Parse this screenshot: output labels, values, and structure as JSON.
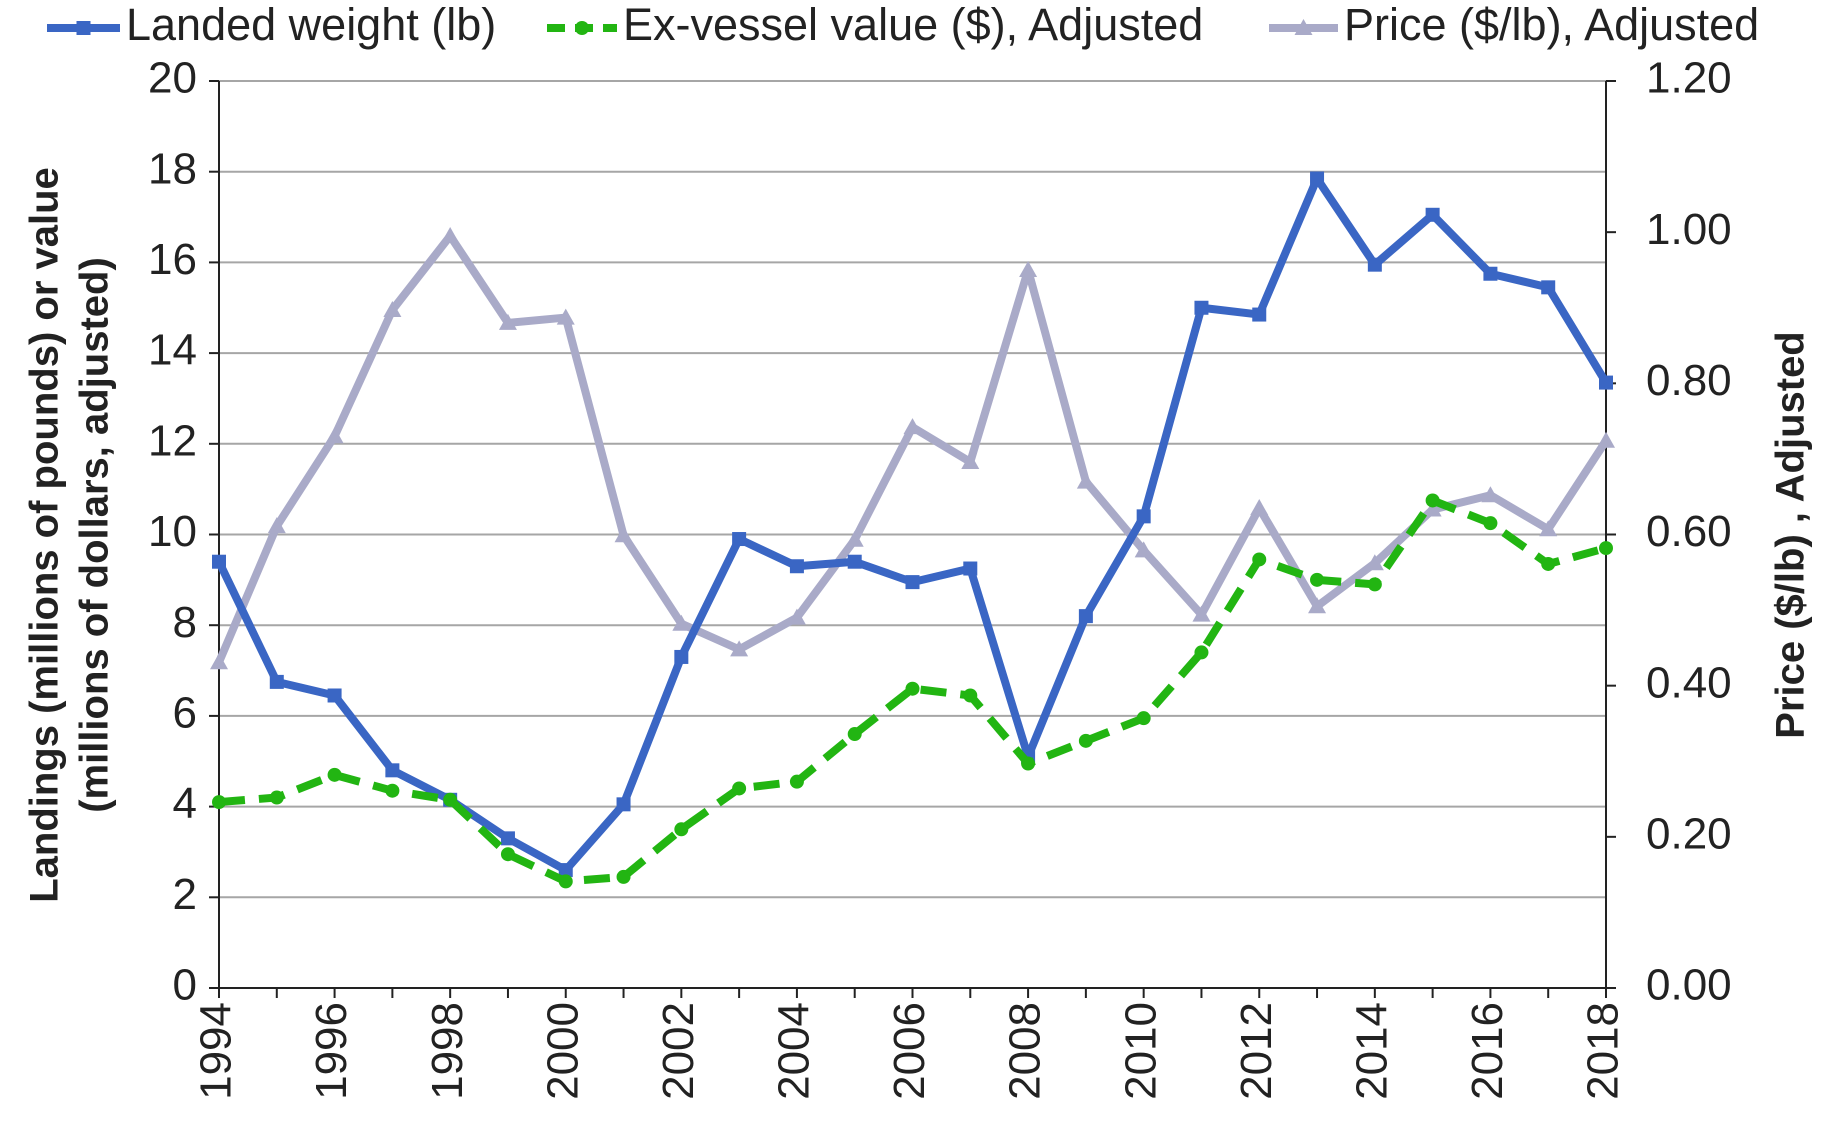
{
  "chart_data": {
    "type": "line",
    "ylabel": [
      "Landings (millions of pounds) or value",
      "(millions of dollars, adjusted)"
    ],
    "y2label": "Price ($/lb) , Adjusted",
    "x": [
      1994,
      1995,
      1996,
      1997,
      1998,
      1999,
      2000,
      2001,
      2002,
      2003,
      2004,
      2005,
      2006,
      2007,
      2008,
      2009,
      2010,
      2011,
      2012,
      2013,
      2014,
      2015,
      2016,
      2017,
      2018
    ],
    "xlim": [
      1994,
      2018
    ],
    "xticks": [
      1994,
      1996,
      1998,
      2000,
      2002,
      2004,
      2006,
      2008,
      2010,
      2012,
      2014,
      2016,
      2018
    ],
    "ylim": [
      0,
      20
    ],
    "yticks": [
      0,
      2,
      4,
      6,
      8,
      10,
      12,
      14,
      16,
      18,
      20
    ],
    "y2lim": [
      0,
      1.2
    ],
    "y2ticks": [
      {
        "value": 0,
        "label": "0.00"
      },
      {
        "value": 0.2,
        "label": "0.20"
      },
      {
        "value": 0.4,
        "label": "0.40"
      },
      {
        "value": 0.6,
        "label": "0.60"
      },
      {
        "value": 0.8,
        "label": "0.80"
      },
      {
        "value": 1.0,
        "label": "1.00"
      },
      {
        "value": 1.2,
        "label": "1.20"
      }
    ],
    "grid": true,
    "legend": "top",
    "series": [
      {
        "name": "Landed weight (lb)",
        "color": "#3a66c4",
        "marker": "square",
        "dash": false,
        "values": [
          9.4,
          6.75,
          6.45,
          4.8,
          4.15,
          3.3,
          2.6,
          4.05,
          7.3,
          9.9,
          9.3,
          9.4,
          8.95,
          9.25,
          5.1,
          8.2,
          10.4,
          15.0,
          14.85,
          17.85,
          15.95,
          17.05,
          15.75,
          15.45,
          13.35
        ]
      },
      {
        "name": "Ex-vessel value ($), Adjusted",
        "color": "#22b512",
        "marker": "circle",
        "dash": true,
        "values": [
          4.1,
          4.2,
          4.7,
          4.35,
          4.15,
          2.95,
          2.35,
          2.45,
          3.5,
          4.4,
          4.55,
          5.6,
          6.6,
          6.45,
          4.95,
          5.45,
          5.95,
          7.4,
          9.45,
          9.0,
          8.9,
          10.75,
          10.25,
          9.35,
          9.7
        ]
      },
      {
        "name": "Price ($/lb), Adjusted",
        "color": "#a9aac8",
        "marker": "triangle",
        "dash": false,
        "axis": "y2",
        "values": [
          0.431,
          0.611,
          0.73,
          0.897,
          0.995,
          0.88,
          0.887,
          0.599,
          0.482,
          0.448,
          0.49,
          0.593,
          0.742,
          0.696,
          0.95,
          0.67,
          0.579,
          0.494,
          0.635,
          0.505,
          0.562,
          0.633,
          0.652,
          0.607,
          0.724
        ]
      }
    ]
  }
}
